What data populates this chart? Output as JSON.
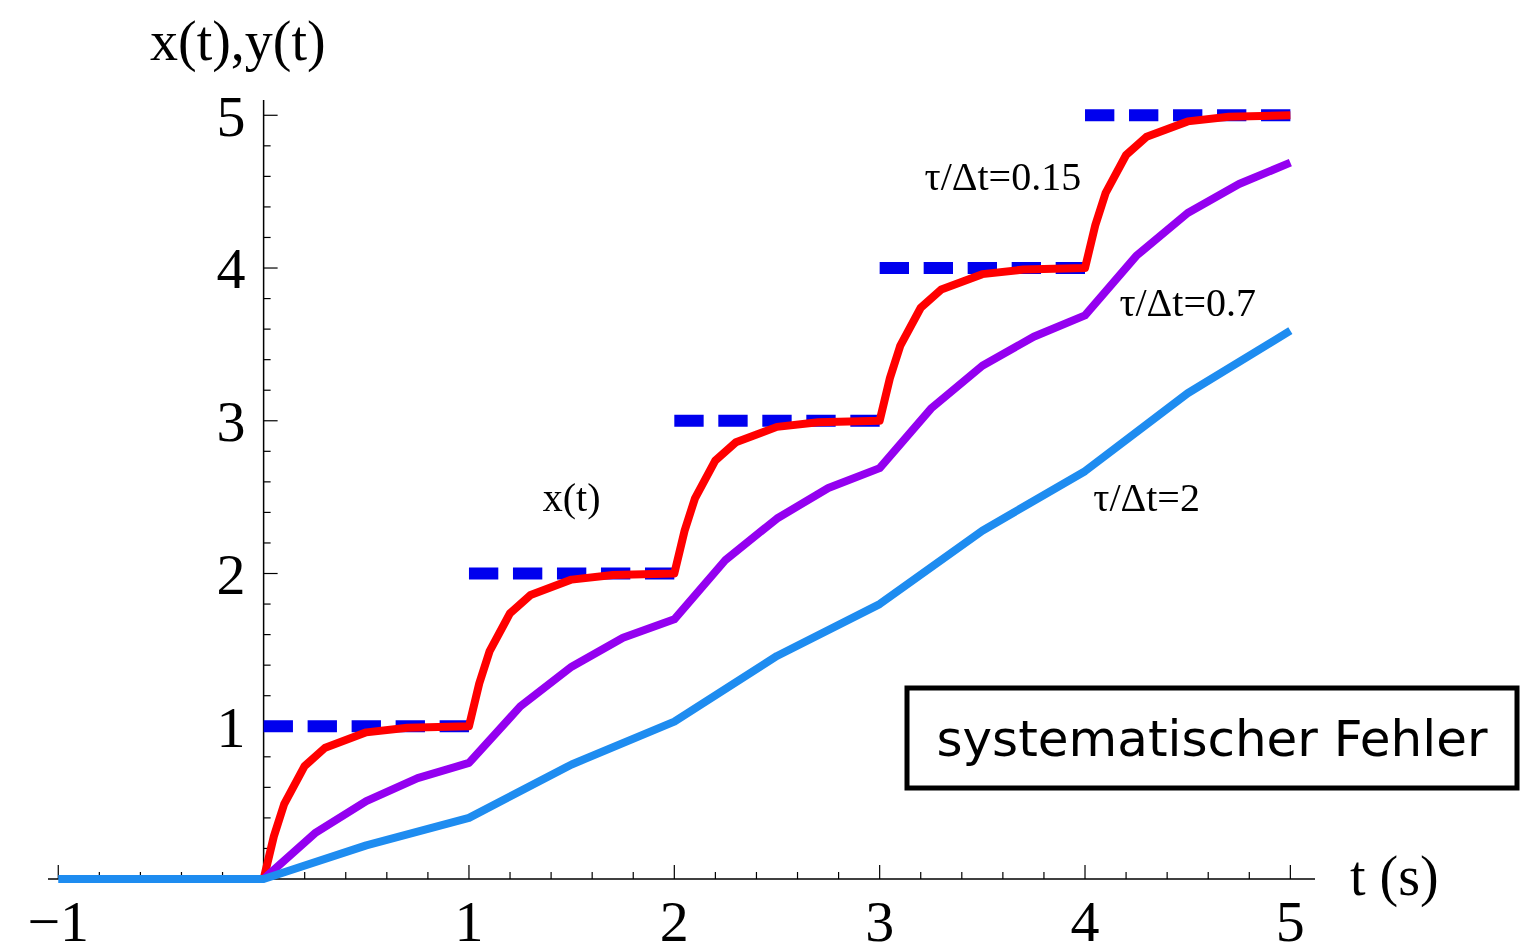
{
  "chart_data": {
    "type": "line",
    "xlabel": "t (s)",
    "ylabel": "x(t),y(t)",
    "xlim": [
      -1.05,
      5.12
    ],
    "ylim": [
      0,
      5.1
    ],
    "xticks": [
      {
        "value": -1,
        "label": "−1"
      },
      {
        "value": -0.8,
        "label": null
      },
      {
        "value": -0.6,
        "label": null
      },
      {
        "value": -0.4,
        "label": null
      },
      {
        "value": -0.2,
        "label": null
      },
      {
        "value": 0,
        "label": null
      },
      {
        "value": 0.2,
        "label": null
      },
      {
        "value": 0.4,
        "label": null
      },
      {
        "value": 0.6,
        "label": null
      },
      {
        "value": 0.8,
        "label": null
      },
      1,
      {
        "value": 1.2,
        "label": null
      },
      {
        "value": 1.4,
        "label": null
      },
      {
        "value": 1.6,
        "label": null
      },
      {
        "value": 1.8,
        "label": null
      },
      2,
      {
        "value": 2.2,
        "label": null
      },
      {
        "value": 2.4,
        "label": null
      },
      {
        "value": 2.6,
        "label": null
      },
      {
        "value": 2.8,
        "label": null
      },
      3,
      {
        "value": 3.2,
        "label": null
      },
      {
        "value": 3.4,
        "label": null
      },
      {
        "value": 3.6,
        "label": null
      },
      {
        "value": 3.8,
        "label": null
      },
      4,
      {
        "value": 4.2,
        "label": null
      },
      {
        "value": 4.4,
        "label": null
      },
      {
        "value": 4.6,
        "label": null
      },
      {
        "value": 4.8,
        "label": null
      },
      5
    ],
    "yticks": [
      {
        "value": 0,
        "label": null
      },
      {
        "value": 0.2,
        "label": null
      },
      {
        "value": 0.4,
        "label": null
      },
      {
        "value": 0.6,
        "label": null
      },
      {
        "value": 0.8,
        "label": null
      },
      1,
      {
        "value": 1.2,
        "label": null
      },
      {
        "value": 1.4,
        "label": null
      },
      {
        "value": 1.6,
        "label": null
      },
      {
        "value": 1.8,
        "label": null
      },
      2,
      {
        "value": 2.2,
        "label": null
      },
      {
        "value": 2.4,
        "label": null
      },
      {
        "value": 2.6,
        "label": null
      },
      {
        "value": 2.8,
        "label": null
      },
      3,
      {
        "value": 3.2,
        "label": null
      },
      {
        "value": 3.4,
        "label": null
      },
      {
        "value": 3.6,
        "label": null
      },
      {
        "value": 3.8,
        "label": null
      },
      4,
      {
        "value": 4.2,
        "label": null
      },
      {
        "value": 4.4,
        "label": null
      },
      {
        "value": 4.6,
        "label": null
      },
      {
        "value": 4.8,
        "label": null
      },
      5
    ],
    "grid": false,
    "marker": "none",
    "series": [
      {
        "name": "x(t)",
        "color": "#0000ee",
        "line_style": "dashed",
        "x": [
          0,
          1,
          1,
          2,
          2,
          3,
          3,
          4,
          4,
          5
        ],
        "values": [
          1,
          1,
          2,
          2,
          3,
          3,
          4,
          4,
          5,
          5
        ]
      },
      {
        "name": "τ/Δt=0.15",
        "color": "#ff0000",
        "line_style": "solid",
        "x": [
          0,
          0.05,
          0.1,
          0.2,
          0.3,
          0.5,
          0.7,
          1,
          1.05,
          1.1,
          1.2,
          1.3,
          1.5,
          1.7,
          2,
          2.05,
          2.1,
          2.2,
          2.3,
          2.5,
          2.7,
          3,
          3.05,
          3.1,
          3.2,
          3.3,
          3.5,
          3.7,
          4,
          4.05,
          4.1,
          4.2,
          4.3,
          4.5,
          4.7,
          5
        ],
        "values": [
          0,
          0.28,
          0.49,
          0.74,
          0.86,
          0.96,
          0.99,
          1,
          1.28,
          1.49,
          1.74,
          1.86,
          1.96,
          1.99,
          2,
          2.28,
          2.49,
          2.74,
          2.86,
          2.96,
          2.99,
          3,
          3.28,
          3.49,
          3.74,
          3.86,
          3.96,
          3.99,
          4,
          4.28,
          4.49,
          4.74,
          4.86,
          4.96,
          4.99,
          5
        ]
      },
      {
        "name": "τ/Δt=0.7",
        "color": "#9400f0",
        "line_style": "solid",
        "x": [
          0,
          0.25,
          0.5,
          0.75,
          1,
          1.25,
          1.5,
          1.75,
          2,
          2.25,
          2.5,
          2.75,
          3,
          3.25,
          3.5,
          3.75,
          4,
          4.25,
          4.5,
          4.75,
          5
        ],
        "values": [
          0,
          0.3,
          0.51,
          0.66,
          0.76,
          1.13,
          1.39,
          1.58,
          1.7,
          2.09,
          2.36,
          2.56,
          2.69,
          3.08,
          3.36,
          3.55,
          3.69,
          4.08,
          4.36,
          4.55,
          4.69
        ]
      },
      {
        "name": "τ/Δt=2",
        "color": "#1e8cf0",
        "line_style": "solid",
        "x": [
          -1,
          0,
          0.5,
          1,
          1.5,
          2,
          2.5,
          3,
          3.5,
          4,
          4.5,
          5
        ],
        "values": [
          0,
          0,
          0.22,
          0.4,
          0.75,
          1.03,
          1.46,
          1.8,
          2.28,
          2.67,
          3.18,
          3.59
        ]
      }
    ],
    "annotations": [
      "systematischer Fehler"
    ]
  }
}
